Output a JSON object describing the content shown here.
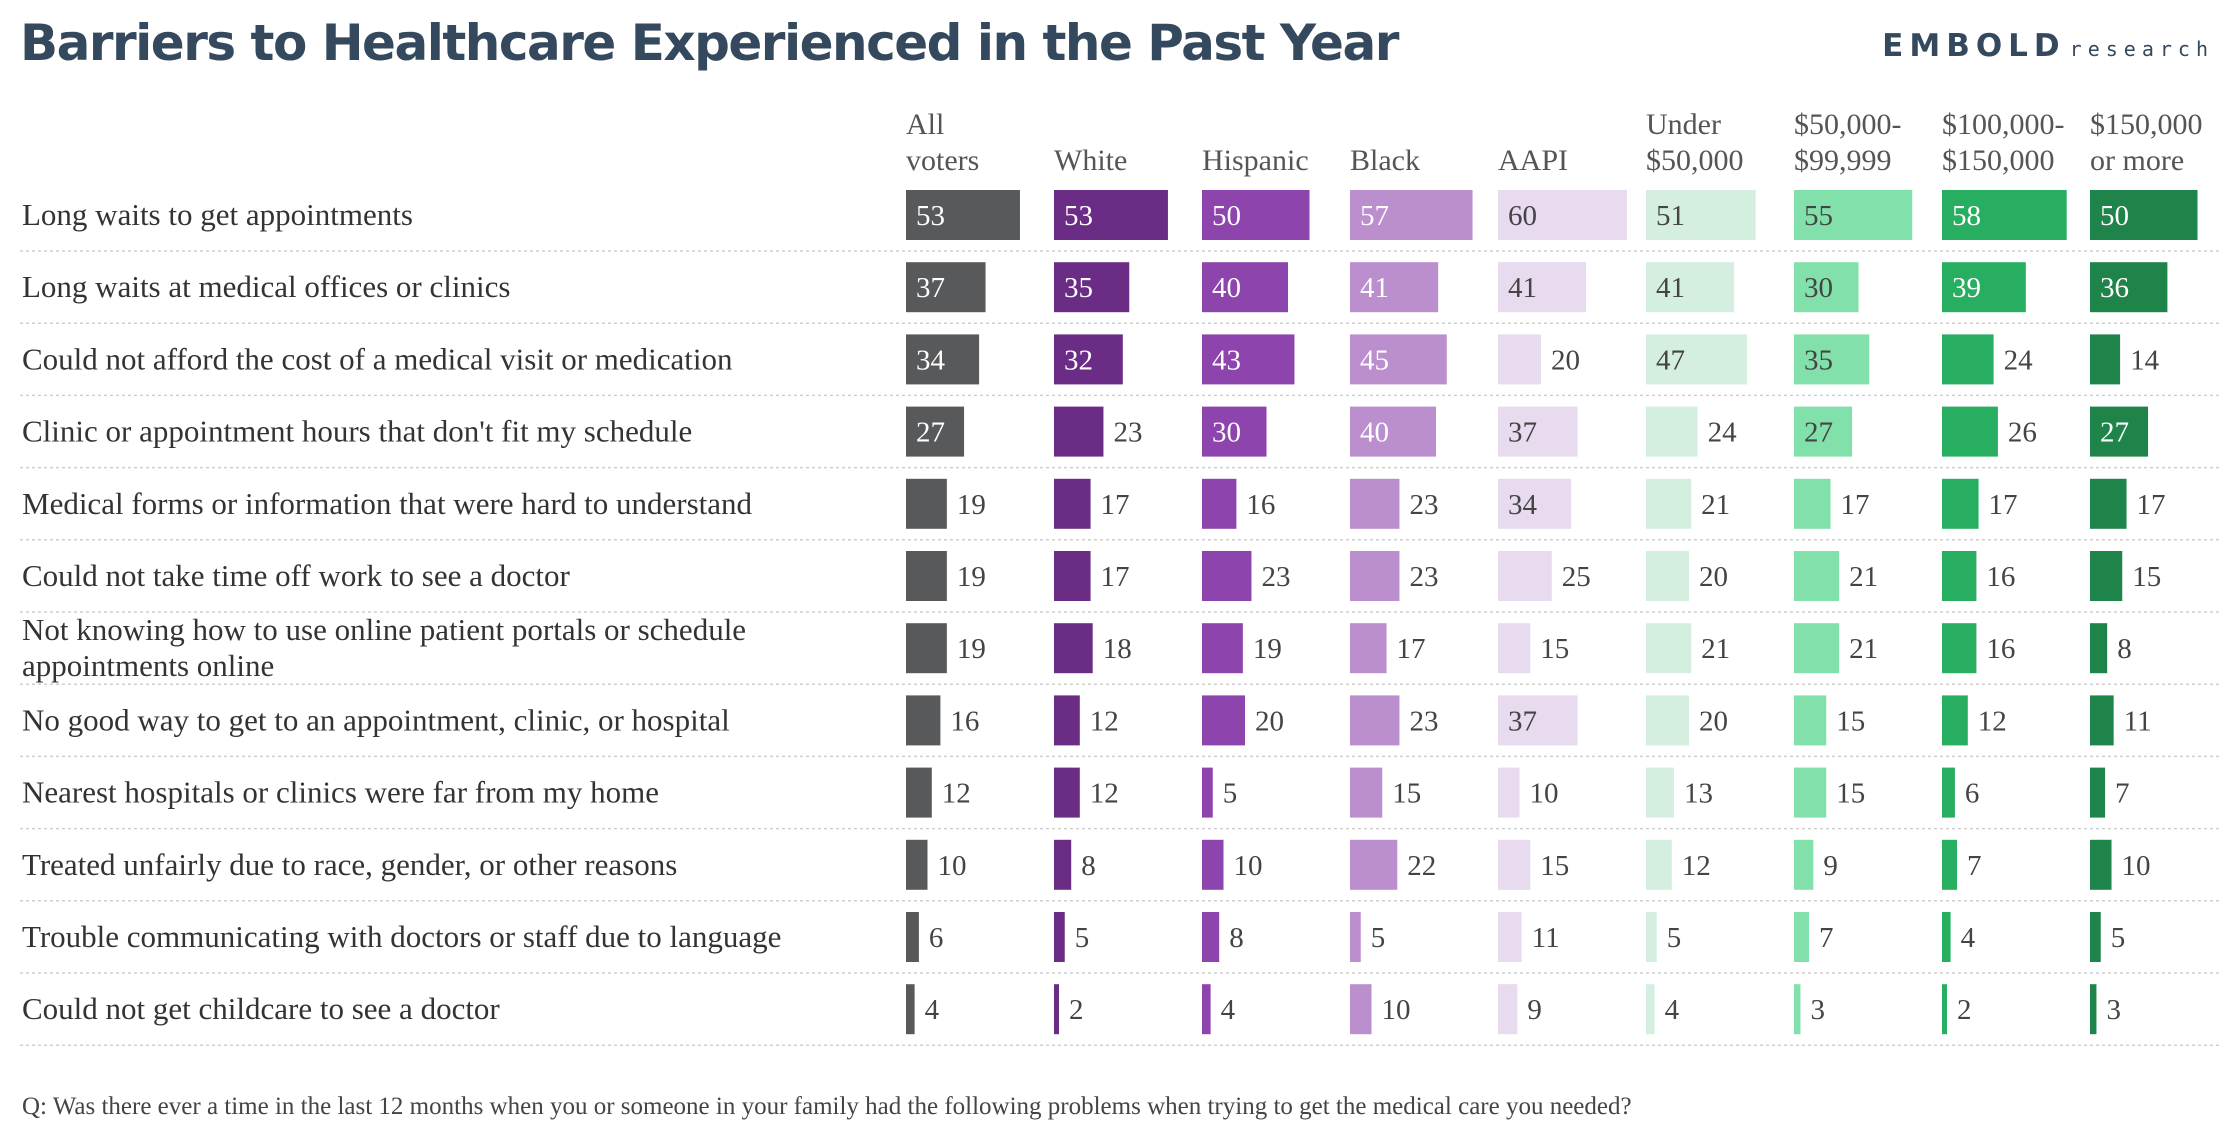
{
  "title": "Barriers to Healthcare Experienced in the Past Year",
  "brand": {
    "name": "EMBOLD",
    "suffix": "research"
  },
  "footnote": "Q: Was there ever a time in the last 12 months when you or someone in your family had the following problems when trying to get the medical care you needed?",
  "chart_data": {
    "type": "table",
    "title": "Barriers to Healthcare Experienced in the Past Year",
    "columns": [
      {
        "label": [
          "All",
          "voters"
        ],
        "color": "#58595b",
        "text_color": "#ffffff"
      },
      {
        "label": [
          "White"
        ],
        "color": "#6b2c85",
        "text_color": "#ffffff"
      },
      {
        "label": [
          "Hispanic"
        ],
        "color": "#8e44ad",
        "text_color": "#ffffff"
      },
      {
        "label": [
          "Black"
        ],
        "color": "#bb8fce",
        "text_color": "#ffffff"
      },
      {
        "label": [
          "AAPI"
        ],
        "color": "#e8daef",
        "text_color": "#444444"
      },
      {
        "label": [
          "Under",
          "$50,000"
        ],
        "color": "#d4efdf",
        "text_color": "#444444"
      },
      {
        "label": [
          "$50,000-",
          "$99,999"
        ],
        "color": "#82e0aa",
        "text_color": "#444444"
      },
      {
        "label": [
          "$100,000-",
          "$150,000"
        ],
        "color": "#27ae60",
        "text_color": "#ffffff"
      },
      {
        "label": [
          "$150,000",
          "or more"
        ],
        "color": "#1e8449",
        "text_color": "#ffffff"
      }
    ],
    "rows": [
      {
        "label": [
          "Long waits to get appointments"
        ],
        "values": [
          53,
          53,
          50,
          57,
          60,
          51,
          55,
          58,
          50
        ]
      },
      {
        "label": [
          "Long waits at medical offices or clinics"
        ],
        "values": [
          37,
          35,
          40,
          41,
          41,
          41,
          30,
          39,
          36
        ]
      },
      {
        "label": [
          "Could not afford the cost of a medical visit or medication"
        ],
        "values": [
          34,
          32,
          43,
          45,
          20,
          47,
          35,
          24,
          14
        ]
      },
      {
        "label": [
          "Clinic or appointment hours that don't fit my schedule"
        ],
        "values": [
          27,
          23,
          30,
          40,
          37,
          24,
          27,
          26,
          27
        ]
      },
      {
        "label": [
          "Medical forms or information that were hard to understand"
        ],
        "values": [
          19,
          17,
          16,
          23,
          34,
          21,
          17,
          17,
          17
        ]
      },
      {
        "label": [
          "Could not take time off work to see a doctor"
        ],
        "values": [
          19,
          17,
          23,
          23,
          25,
          20,
          21,
          16,
          15
        ]
      },
      {
        "label": [
          "Not knowing how to use online patient portals or schedule",
          "appointments online"
        ],
        "values": [
          19,
          18,
          19,
          17,
          15,
          21,
          21,
          16,
          8
        ]
      },
      {
        "label": [
          "No good way to get to an appointment, clinic, or hospital"
        ],
        "values": [
          16,
          12,
          20,
          23,
          37,
          20,
          15,
          12,
          11
        ]
      },
      {
        "label": [
          "Nearest hospitals or clinics were far from my home"
        ],
        "values": [
          12,
          12,
          5,
          15,
          10,
          13,
          15,
          6,
          7
        ]
      },
      {
        "label": [
          "Treated unfairly due to race, gender, or other reasons"
        ],
        "values": [
          10,
          8,
          10,
          22,
          15,
          12,
          9,
          7,
          10
        ]
      },
      {
        "label": [
          "Trouble communicating with doctors or staff due to language"
        ],
        "values": [
          6,
          5,
          8,
          5,
          11,
          5,
          7,
          4,
          5
        ]
      },
      {
        "label": [
          "Could not get childcare to see a doctor"
        ],
        "values": [
          4,
          2,
          4,
          10,
          9,
          4,
          3,
          2,
          3
        ]
      }
    ]
  }
}
